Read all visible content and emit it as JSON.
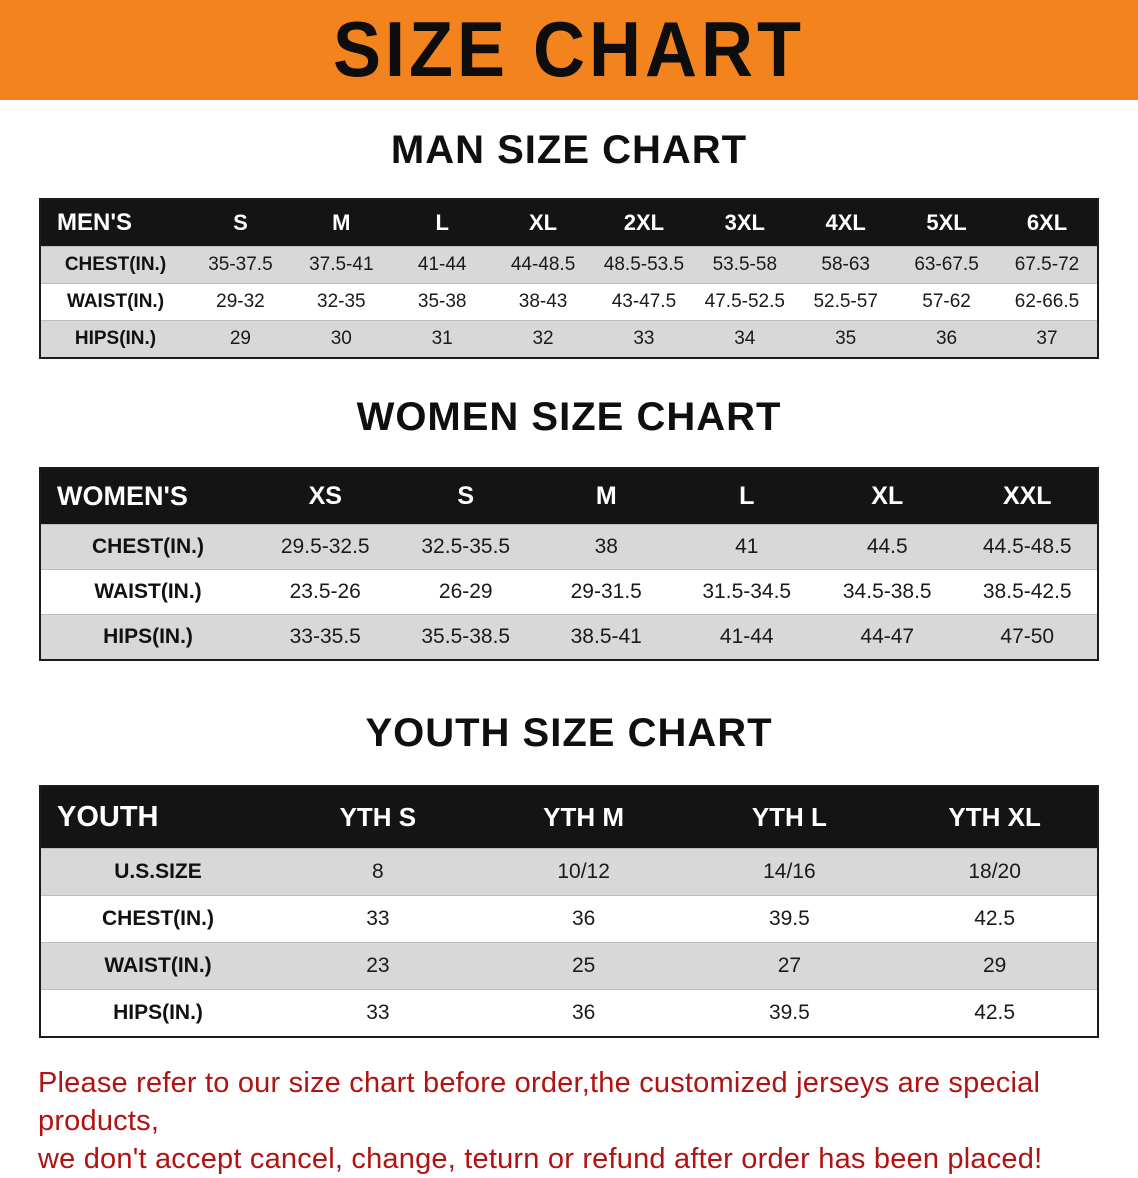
{
  "banner": {
    "title": "SIZE CHART"
  },
  "colors": {
    "banner_bg": "#f3831d",
    "table_header_bg": "#141414",
    "row_stripe": "#d8d8d8",
    "disclaimer_text": "#b11212"
  },
  "men": {
    "heading": "MAN SIZE CHART",
    "header": [
      "MEN'S",
      "S",
      "M",
      "L",
      "XL",
      "2XL",
      "3XL",
      "4XL",
      "5XL",
      "6XL"
    ],
    "rows": [
      [
        "CHEST(IN.)",
        "35-37.5",
        "37.5-41",
        "41-44",
        "44-48.5",
        "48.5-53.5",
        "53.5-58",
        "58-63",
        "63-67.5",
        "67.5-72"
      ],
      [
        "WAIST(IN.)",
        "29-32",
        "32-35",
        "35-38",
        "38-43",
        "43-47.5",
        "47.5-52.5",
        "52.5-57",
        "57-62",
        "62-66.5"
      ],
      [
        "HIPS(IN.)",
        "29",
        "30",
        "31",
        "32",
        "33",
        "34",
        "35",
        "36",
        "37"
      ]
    ]
  },
  "women": {
    "heading": "WOMEN SIZE CHART",
    "header": [
      "WOMEN'S",
      "XS",
      "S",
      "M",
      "L",
      "XL",
      "XXL"
    ],
    "rows": [
      [
        "CHEST(IN.)",
        "29.5-32.5",
        "32.5-35.5",
        "38",
        "41",
        "44.5",
        "44.5-48.5"
      ],
      [
        "WAIST(IN.)",
        "23.5-26",
        "26-29",
        "29-31.5",
        "31.5-34.5",
        "34.5-38.5",
        "38.5-42.5"
      ],
      [
        "HIPS(IN.)",
        "33-35.5",
        "35.5-38.5",
        "38.5-41",
        "41-44",
        "44-47",
        "47-50"
      ]
    ]
  },
  "youth": {
    "heading": "YOUTH SIZE CHART",
    "header": [
      "YOUTH",
      "YTH S",
      "YTH M",
      "YTH L",
      "YTH XL"
    ],
    "rows": [
      [
        "U.S.SIZE",
        "8",
        "10/12",
        "14/16",
        "18/20"
      ],
      [
        "CHEST(IN.)",
        "33",
        "36",
        "39.5",
        "42.5"
      ],
      [
        "WAIST(IN.)",
        "23",
        "25",
        "27",
        "29"
      ],
      [
        "HIPS(IN.)",
        "33",
        "36",
        "39.5",
        "42.5"
      ]
    ]
  },
  "disclaimer": {
    "line1": "Please refer to our size chart before order,the customized jerseys are special products,",
    "line2": "we don't accept cancel, change, teturn or refund after order has been placed!"
  }
}
